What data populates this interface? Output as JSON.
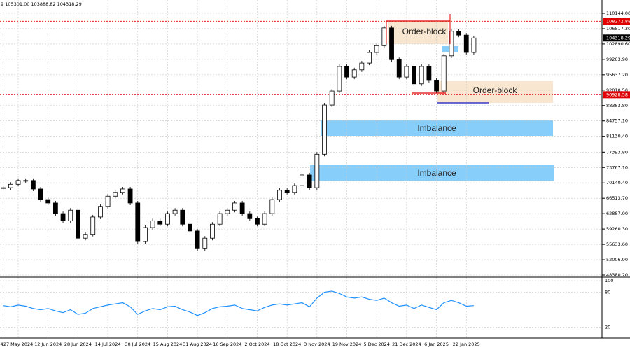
{
  "chart_data": [
    {
      "type": "candlestick",
      "title": "9 105301.00 103888.82 104318.29",
      "categories": [
        "4",
        null,
        "27 May 2024",
        null,
        null,
        null,
        "12 Jun 2024",
        null,
        null,
        null,
        "28 Jun 2024",
        null,
        null,
        null,
        "14 Jul 2024",
        null,
        null,
        null,
        "30 Jul 2024",
        null,
        null,
        null,
        "15 Aug 2024",
        null,
        null,
        null,
        "31 Aug 2024",
        null,
        null,
        null,
        "16 Sep 2024",
        null,
        null,
        null,
        "2 Oct 2024",
        null,
        null,
        null,
        "18 Oct 2024",
        null,
        null,
        null,
        "3 Nov 2024",
        null,
        null,
        null,
        "19 Nov 2024",
        null,
        null,
        null,
        "5 Dec 2024",
        null,
        null,
        null,
        "21 Dec 2024",
        null,
        null,
        null,
        "6 Jan 2025",
        null,
        null,
        null,
        "22 Jan 2025",
        null
      ],
      "values": [
        69000,
        69800,
        70700,
        70700,
        68700,
        66200,
        65400,
        62900,
        61200,
        63700,
        57100,
        58000,
        62100,
        64600,
        67000,
        67900,
        68700,
        65400,
        56300,
        59600,
        61200,
        60400,
        62900,
        63700,
        60400,
        58800,
        54600,
        57100,
        60400,
        62900,
        63700,
        65400,
        62900,
        61700,
        60400,
        62900,
        66200,
        68400,
        67900,
        69500,
        72000,
        69000,
        76900,
        88500,
        91800,
        97600,
        95100,
        96800,
        98400,
        100900,
        102500,
        106700,
        99200,
        95100,
        97600,
        93500,
        97600,
        94300,
        91800,
        100100,
        105900,
        105000,
        100900,
        104318.29
      ],
      "ylim": [
        48380.2,
        110144
      ],
      "yticks": [
        {
          "value": 110144,
          "label": "110144.00"
        },
        {
          "value": 106517.3,
          "label": "106517.30"
        },
        {
          "value": 102890.6,
          "label": "102890.60"
        },
        {
          "value": 99263.9,
          "label": "99263.90"
        },
        {
          "value": 95637.2,
          "label": "95637.20"
        },
        {
          "value": 92010.5,
          "label": "92010.50"
        },
        {
          "value": 88383.8,
          "label": "88383.80"
        },
        {
          "value": 84757.1,
          "label": "84757.10"
        },
        {
          "value": 81130.4,
          "label": "81130.40"
        },
        {
          "value": 77393.8,
          "label": "77393.80"
        },
        {
          "value": 73767.1,
          "label": "73767.10"
        },
        {
          "value": 70140.4,
          "label": "70140.40"
        },
        {
          "value": 66513.7,
          "label": "66513.70"
        },
        {
          "value": 62887,
          "label": "62887.00"
        },
        {
          "value": 59260.3,
          "label": "59260.30"
        },
        {
          "value": 55633.6,
          "label": "55633.60"
        },
        {
          "value": 52006.9,
          "label": "52006.90"
        },
        {
          "value": 48380.2,
          "label": "48380.20"
        }
      ],
      "hlines": [
        {
          "value": 108272.88,
          "color": "#e00000"
        },
        {
          "value": 90928.58,
          "color": "#e00000"
        }
      ],
      "annotations": [
        "Order-block",
        "Order-block",
        "Imbalance",
        "Imbalance"
      ],
      "grid": true
    },
    {
      "type": "line",
      "color": "#1e90ff",
      "values": [
        57,
        55,
        58,
        56,
        52,
        50,
        52,
        48,
        45,
        50,
        42,
        44,
        52,
        55,
        58,
        60,
        62,
        55,
        42,
        48,
        52,
        50,
        55,
        56,
        50,
        46,
        40,
        45,
        52,
        55,
        56,
        58,
        52,
        50,
        48,
        54,
        58,
        60,
        58,
        60,
        62,
        55,
        70,
        80,
        82,
        78,
        72,
        70,
        72,
        68,
        66,
        70,
        62,
        56,
        58,
        52,
        58,
        54,
        50,
        62,
        66,
        62,
        56,
        57
      ],
      "ylim": [
        0,
        100
      ],
      "yticks": [
        20,
        80,
        100
      ]
    }
  ]
}
